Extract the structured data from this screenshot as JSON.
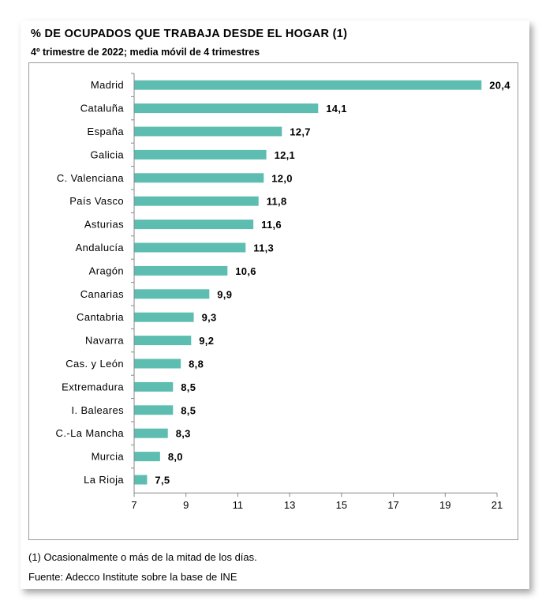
{
  "chart_data": {
    "type": "bar",
    "orientation": "horizontal",
    "title": "% DE OCUPADOS QUE TRABAJA DESDE EL HOGAR (1)",
    "subtitle": "4º trimestre de 2022; media móvil de 4 trimestres",
    "categories": [
      "Madrid",
      "Cataluña",
      "España",
      "Galicia",
      "C. Valenciana",
      "País Vasco",
      "Asturias",
      "Andalucía",
      "Aragón",
      "Canarias",
      "Cantabria",
      "Navarra",
      "Cas. y León",
      "Extremadura",
      "I. Baleares",
      "C.-La Mancha",
      "Murcia",
      "La Rioja"
    ],
    "values": [
      20.4,
      14.1,
      12.7,
      12.1,
      12.0,
      11.8,
      11.6,
      11.3,
      10.6,
      9.9,
      9.3,
      9.2,
      8.8,
      8.5,
      8.5,
      8.3,
      8.0,
      7.5
    ],
    "value_labels": [
      "20,4",
      "14,1",
      "12,7",
      "12,1",
      "12,0",
      "11,8",
      "11,6",
      "11,3",
      "10,6",
      "9,9",
      "9,3",
      "9,2",
      "8,8",
      "8,5",
      "8,5",
      "8,3",
      "8,0",
      "7,5"
    ],
    "xlim": [
      7,
      21
    ],
    "xticks": [
      7,
      9,
      11,
      13,
      15,
      17,
      19,
      21
    ],
    "xlabel": "",
    "ylabel": "",
    "grid": false,
    "bar_color": "#5cbdb0"
  },
  "notes": {
    "footnote": "(1) Ocasionalmente o más de la mitad de los días.",
    "source": "Fuente: Adecco Institute sobre la base de INE"
  }
}
